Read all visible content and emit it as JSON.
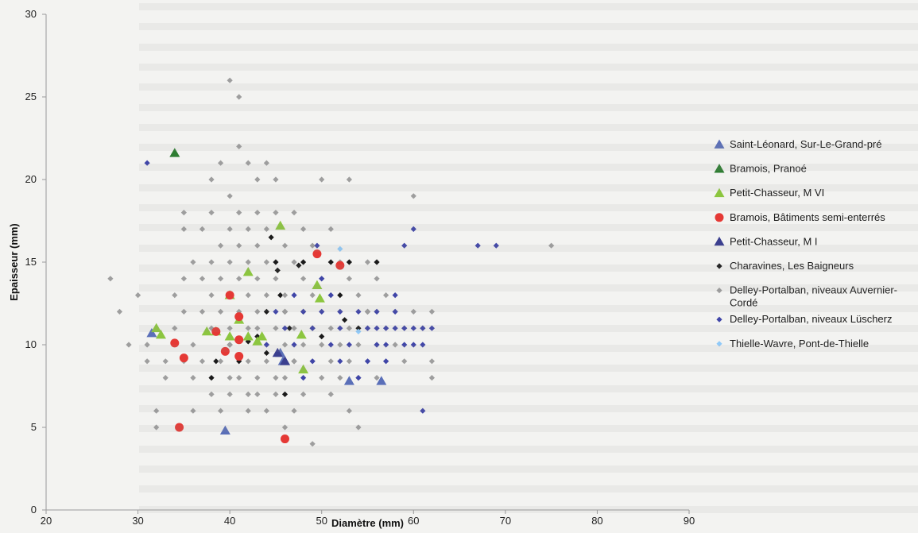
{
  "chart_data": {
    "type": "scatter",
    "title": "",
    "xlabel": "Diamètre (mm)",
    "ylabel": "Epaisseur (mm)",
    "xlim": [
      20,
      90
    ],
    "ylim": [
      0,
      30
    ],
    "xticks": [
      20,
      30,
      40,
      50,
      60,
      70,
      80,
      90
    ],
    "yticks": [
      0,
      5,
      10,
      15,
      20,
      25,
      30
    ],
    "grid": false,
    "legend_position": "right",
    "series": [
      {
        "name": "Saint-Léonard, Sur-Le-Grand-pré",
        "marker": "triangle",
        "color": "#5a6fb8",
        "points": [
          [
            31.5,
            10.7
          ],
          [
            39.5,
            4.8
          ],
          [
            45.5,
            9.5
          ],
          [
            45.8,
            9.0
          ],
          [
            46,
            9.0
          ],
          [
            53,
            7.8
          ],
          [
            56.5,
            7.8
          ]
        ]
      },
      {
        "name": "Bramois, Pranoé",
        "marker": "triangle",
        "color": "#2e7d32",
        "points": [
          [
            34,
            21.6
          ]
        ]
      },
      {
        "name": "Petit-Chasseur, M VI",
        "marker": "triangle",
        "color": "#8cc63f",
        "points": [
          [
            32,
            11
          ],
          [
            32.5,
            10.6
          ],
          [
            37.5,
            10.8
          ],
          [
            38.5,
            10.8
          ],
          [
            40,
            13.0
          ],
          [
            41,
            11.5
          ],
          [
            42,
            10.5
          ],
          [
            42,
            14.4
          ],
          [
            43.5,
            10.5
          ],
          [
            45.5,
            17.2
          ],
          [
            47.8,
            10.6
          ],
          [
            48,
            8.5
          ],
          [
            49.5,
            13.6
          ],
          [
            49.8,
            12.8
          ],
          [
            43,
            10.2
          ],
          [
            40,
            10.5
          ]
        ]
      },
      {
        "name": "Bramois, Bâtiments semi-enterrés",
        "marker": "circle",
        "color": "#e53935",
        "points": [
          [
            34,
            10.1
          ],
          [
            34.5,
            5.0
          ],
          [
            35,
            9.2
          ],
          [
            38.5,
            10.8
          ],
          [
            39.5,
            9.6
          ],
          [
            40,
            13.0
          ],
          [
            41,
            9.3
          ],
          [
            41,
            10.3
          ],
          [
            41,
            11.7
          ],
          [
            46,
            4.3
          ],
          [
            49.5,
            15.5
          ],
          [
            52,
            14.8
          ]
        ]
      },
      {
        "name": "Petit-Chasseur, M I",
        "marker": "triangle",
        "color": "#3b3f8f",
        "points": [
          [
            45.2,
            9.5
          ],
          [
            46,
            9.0
          ]
        ]
      },
      {
        "name": "Charavines, Les Baigneurs",
        "marker": "diamond",
        "color": "#1a1a1a",
        "points": [
          [
            38,
            8.0
          ],
          [
            38.5,
            9.0
          ],
          [
            40,
            10.0
          ],
          [
            41,
            9.0
          ],
          [
            42,
            10.2
          ],
          [
            43,
            10.5
          ],
          [
            44,
            12.0
          ],
          [
            44.5,
            16.5
          ],
          [
            45,
            15.0
          ],
          [
            45.2,
            14.5
          ],
          [
            45.5,
            13.0
          ],
          [
            46,
            12.0
          ],
          [
            46.5,
            11.0
          ],
          [
            47,
            9.0
          ],
          [
            48,
            15.0
          ],
          [
            48,
            12.0
          ],
          [
            49,
            11.0
          ],
          [
            50,
            10.5
          ],
          [
            51,
            15.0
          ],
          [
            52,
            13.0
          ],
          [
            52.5,
            11.5
          ],
          [
            53,
            15.0
          ],
          [
            54,
            11.0
          ],
          [
            55,
            12.0
          ],
          [
            56,
            15.0
          ],
          [
            47.5,
            14.8
          ],
          [
            44,
            9.5
          ],
          [
            46,
            7.0
          ]
        ]
      },
      {
        "name": "Delley-Portalban, niveaux Auvernier-Cordé",
        "marker": "diamond",
        "color": "#9e9e9e",
        "points": [
          [
            27,
            14
          ],
          [
            28,
            12
          ],
          [
            29,
            10
          ],
          [
            30,
            13
          ],
          [
            31,
            10
          ],
          [
            31,
            9
          ],
          [
            32,
            5
          ],
          [
            32,
            6
          ],
          [
            33,
            9
          ],
          [
            33,
            8
          ],
          [
            34,
            11
          ],
          [
            34,
            13
          ],
          [
            35,
            9
          ],
          [
            35,
            12
          ],
          [
            35,
            14
          ],
          [
            35,
            17
          ],
          [
            35,
            18
          ],
          [
            36,
            15
          ],
          [
            36,
            10
          ],
          [
            36,
            8
          ],
          [
            36,
            6
          ],
          [
            37,
            17
          ],
          [
            37,
            14
          ],
          [
            37,
            12
          ],
          [
            37,
            9
          ],
          [
            38,
            20
          ],
          [
            38,
            18
          ],
          [
            38,
            15
          ],
          [
            38,
            13
          ],
          [
            38,
            11
          ],
          [
            38,
            7
          ],
          [
            39,
            21
          ],
          [
            39,
            16
          ],
          [
            39,
            14
          ],
          [
            39,
            12
          ],
          [
            39,
            9
          ],
          [
            39,
            6
          ],
          [
            40,
            26
          ],
          [
            40,
            19
          ],
          [
            40,
            17
          ],
          [
            40,
            15
          ],
          [
            40,
            13
          ],
          [
            40,
            11
          ],
          [
            40,
            10
          ],
          [
            40,
            8
          ],
          [
            40,
            7
          ],
          [
            41,
            25
          ],
          [
            41,
            22
          ],
          [
            41,
            18
          ],
          [
            41,
            16
          ],
          [
            41,
            14
          ],
          [
            41,
            12
          ],
          [
            41,
            8
          ],
          [
            42,
            21
          ],
          [
            42,
            17
          ],
          [
            42,
            15
          ],
          [
            42,
            13
          ],
          [
            42,
            11
          ],
          [
            42,
            9
          ],
          [
            42,
            7
          ],
          [
            42,
            6
          ],
          [
            43,
            20
          ],
          [
            43,
            18
          ],
          [
            43,
            16
          ],
          [
            43,
            14
          ],
          [
            43,
            12
          ],
          [
            43,
            11
          ],
          [
            43,
            8
          ],
          [
            43,
            7
          ],
          [
            44,
            21
          ],
          [
            44,
            17
          ],
          [
            44,
            15
          ],
          [
            44,
            13
          ],
          [
            44,
            10
          ],
          [
            44,
            9
          ],
          [
            44,
            6
          ],
          [
            45,
            20
          ],
          [
            45,
            18
          ],
          [
            45,
            14
          ],
          [
            45,
            11
          ],
          [
            45,
            8
          ],
          [
            45,
            7
          ],
          [
            46,
            16
          ],
          [
            46,
            13
          ],
          [
            46,
            12
          ],
          [
            46,
            10
          ],
          [
            46,
            8
          ],
          [
            46,
            5
          ],
          [
            47,
            18
          ],
          [
            47,
            15
          ],
          [
            47,
            11
          ],
          [
            47,
            9
          ],
          [
            47,
            6
          ],
          [
            48,
            17
          ],
          [
            48,
            14
          ],
          [
            48,
            12
          ],
          [
            48,
            10
          ],
          [
            48,
            7
          ],
          [
            49,
            16
          ],
          [
            49,
            13
          ],
          [
            49,
            11
          ],
          [
            49,
            9
          ],
          [
            49,
            4
          ],
          [
            50,
            20
          ],
          [
            50,
            14
          ],
          [
            50,
            12
          ],
          [
            50,
            10
          ],
          [
            50,
            8
          ],
          [
            51,
            17
          ],
          [
            51,
            13
          ],
          [
            51,
            11
          ],
          [
            51,
            9
          ],
          [
            51,
            7
          ],
          [
            52,
            15
          ],
          [
            52,
            12
          ],
          [
            52,
            10
          ],
          [
            52,
            8
          ],
          [
            53,
            20
          ],
          [
            53,
            14
          ],
          [
            53,
            11
          ],
          [
            53,
            9
          ],
          [
            53,
            6
          ],
          [
            54,
            13
          ],
          [
            54,
            10
          ],
          [
            54,
            8
          ],
          [
            54,
            5
          ],
          [
            55,
            15
          ],
          [
            55,
            12
          ],
          [
            55,
            11
          ],
          [
            55,
            9
          ],
          [
            56,
            14
          ],
          [
            56,
            12
          ],
          [
            56,
            10
          ],
          [
            56,
            8
          ],
          [
            57,
            13
          ],
          [
            57,
            11
          ],
          [
            57,
            9
          ],
          [
            58,
            12
          ],
          [
            58,
            10
          ],
          [
            59,
            11
          ],
          [
            59,
            9
          ],
          [
            60,
            19
          ],
          [
            60,
            12
          ],
          [
            61,
            11
          ],
          [
            62,
            12
          ],
          [
            62,
            9
          ],
          [
            62,
            8
          ],
          [
            75,
            16
          ]
        ]
      },
      {
        "name": "Delley-Portalban, niveaux Lüscherz",
        "marker": "diamond",
        "color": "#3f45a8",
        "points": [
          [
            31,
            21
          ],
          [
            44,
            10
          ],
          [
            45,
            12
          ],
          [
            46,
            11
          ],
          [
            47,
            10
          ],
          [
            47,
            13
          ],
          [
            48,
            12
          ],
          [
            49,
            9
          ],
          [
            49,
            11
          ],
          [
            49.5,
            16
          ],
          [
            50,
            12
          ],
          [
            51,
            10
          ],
          [
            51,
            13
          ],
          [
            52,
            9
          ],
          [
            52,
            11
          ],
          [
            52,
            12
          ],
          [
            53,
            10
          ],
          [
            54,
            8
          ],
          [
            54,
            12
          ],
          [
            55,
            11
          ],
          [
            55,
            9
          ],
          [
            56,
            10
          ],
          [
            56,
            12
          ],
          [
            56,
            11
          ],
          [
            57,
            11
          ],
          [
            57,
            10
          ],
          [
            57,
            9
          ],
          [
            58,
            11
          ],
          [
            58,
            12
          ],
          [
            58,
            13
          ],
          [
            59,
            11
          ],
          [
            59,
            10
          ],
          [
            59,
            16
          ],
          [
            60,
            17
          ],
          [
            60,
            11
          ],
          [
            60,
            10
          ],
          [
            61,
            11
          ],
          [
            61,
            10
          ],
          [
            61,
            6
          ],
          [
            62,
            11
          ],
          [
            67,
            16
          ],
          [
            69,
            16
          ],
          [
            50,
            14
          ],
          [
            48,
            8
          ],
          [
            46,
            9
          ]
        ]
      },
      {
        "name": "Thielle-Wavre, Pont-de-Thielle",
        "marker": "diamond",
        "color": "#90caf9",
        "points": [
          [
            52,
            15.8
          ],
          [
            54,
            10.8
          ]
        ]
      }
    ]
  }
}
